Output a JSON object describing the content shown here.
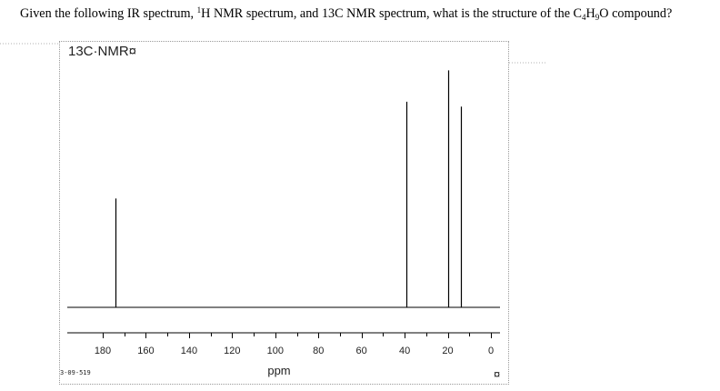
{
  "question": {
    "prefix": "Given the following IR spectrum, ",
    "h_mass": "1",
    "h_rest": "H NMR spectrum, and 13C NMR spectrum, what is the structure of the C",
    "sub_c": "4",
    "h_letter": "H",
    "sub_h": "9",
    "suffix": "O compound?"
  },
  "spectrum": {
    "header": "13C·NMR¤",
    "file_id": "3-09-519",
    "xlabel": "ppm",
    "pilcrow": "¤"
  },
  "chart_data": {
    "type": "line",
    "title": "13C·NMR¤",
    "xlabel": "ppm",
    "ylabel": "",
    "x_reversed": true,
    "xlim": [
      0,
      180
    ],
    "xticks": [
      "180",
      "160",
      "140",
      "120",
      "100",
      "80",
      "60",
      "40",
      "20",
      "0"
    ],
    "peaks": [
      {
        "ppm": 174,
        "intensity": 0.45
      },
      {
        "ppm": 39,
        "intensity": 0.85
      },
      {
        "ppm": 20,
        "intensity": 0.98
      },
      {
        "ppm": 14,
        "intensity": 0.83
      }
    ],
    "grid": false
  }
}
